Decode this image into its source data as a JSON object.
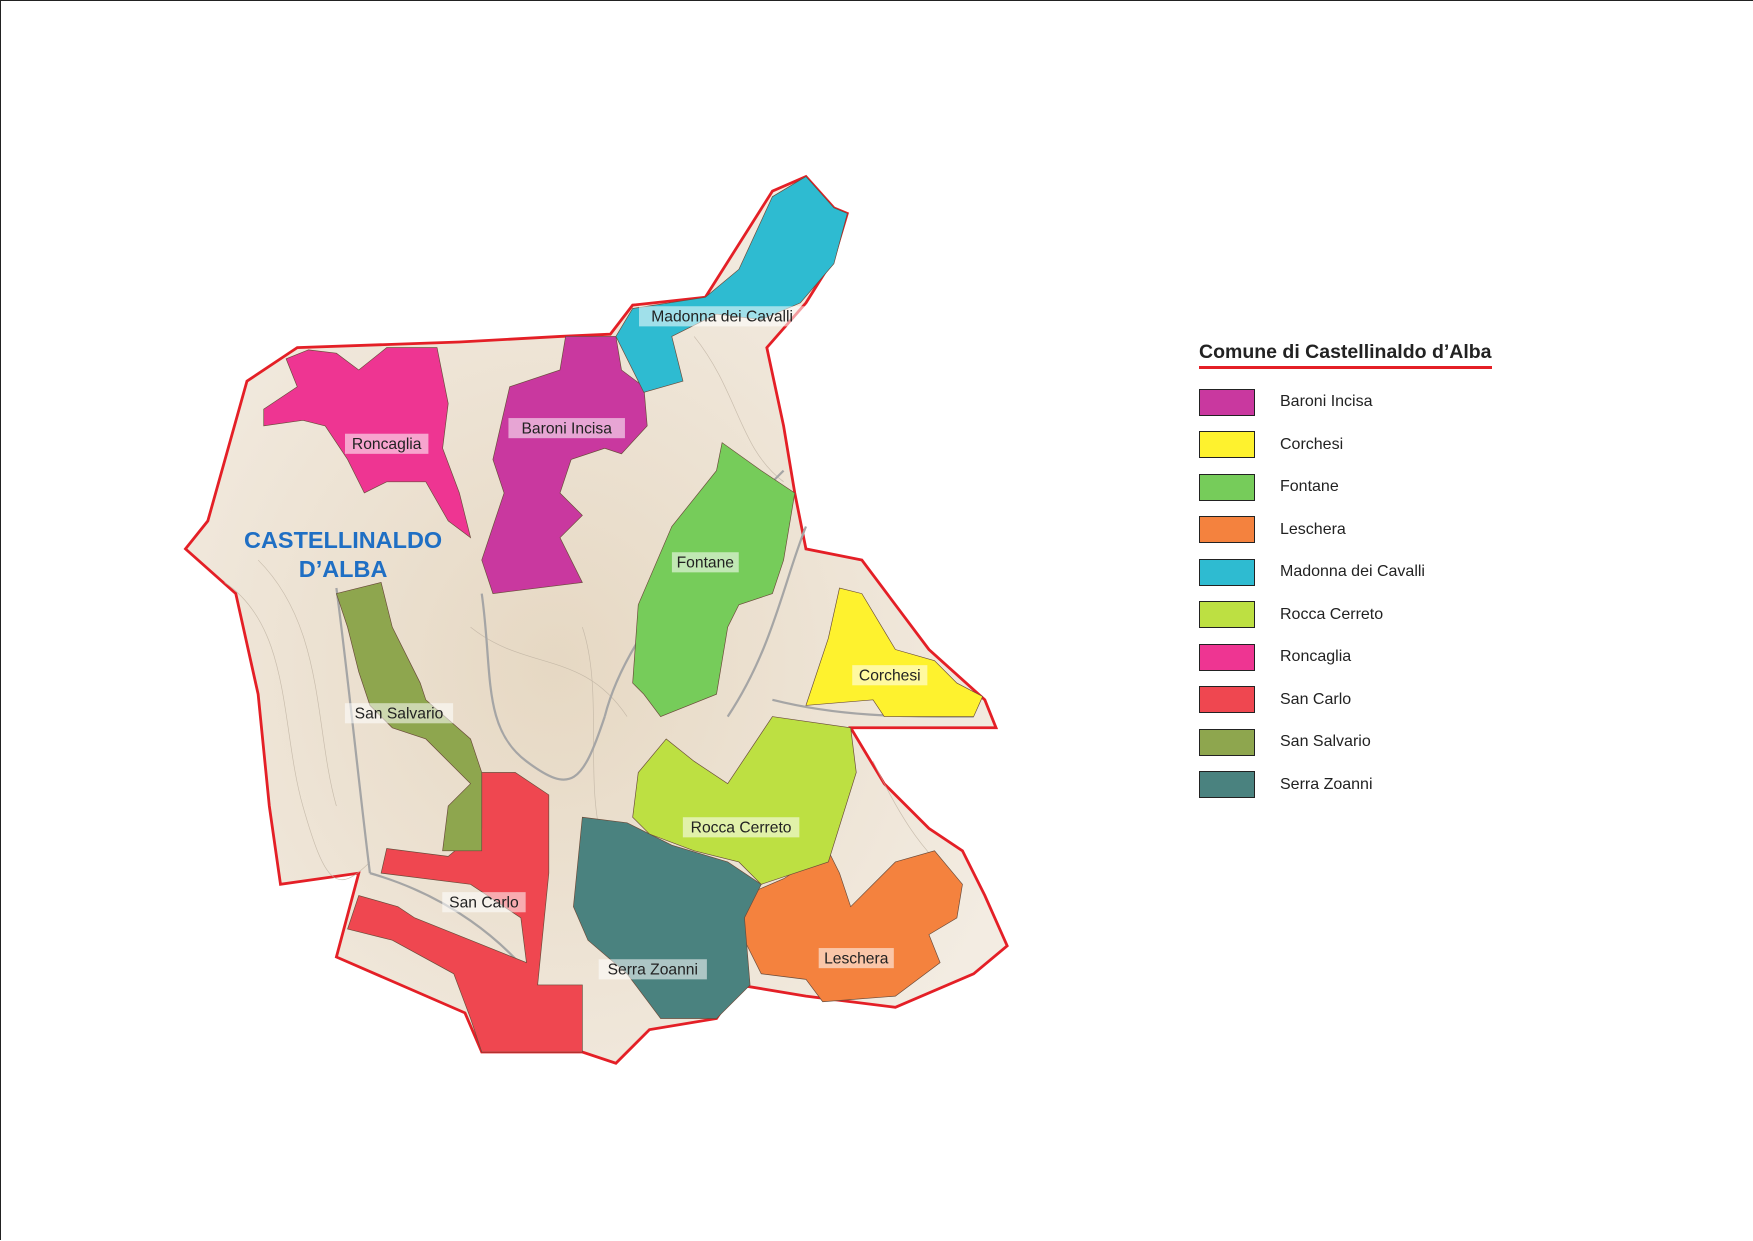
{
  "map": {
    "town_label_line1": "CASTELLINALDO",
    "town_label_line2": "D’ALBA",
    "boundary_color": "#e41f26",
    "terrain_color": "#efe6d8"
  },
  "legend": {
    "title": "Comune di Castellinaldo d’Alba",
    "items": [
      {
        "label": "Baroni Incisa",
        "color": "#c9389f"
      },
      {
        "label": "Corchesi",
        "color": "#fef22e"
      },
      {
        "label": "Fontane",
        "color": "#76cc5a"
      },
      {
        "label": "Leschera",
        "color": "#f4823e"
      },
      {
        "label": "Madonna dei Cavalli",
        "color": "#2ebbd1"
      },
      {
        "label": "Rocca Cerreto",
        "color": "#bde042"
      },
      {
        "label": "Roncaglia",
        "color": "#ee3592"
      },
      {
        "label": "San Carlo",
        "color": "#ef4750"
      },
      {
        "label": "San Salvario",
        "color": "#8ea64e"
      },
      {
        "label": "Serra Zoanni",
        "color": "#4a827f"
      }
    ]
  }
}
